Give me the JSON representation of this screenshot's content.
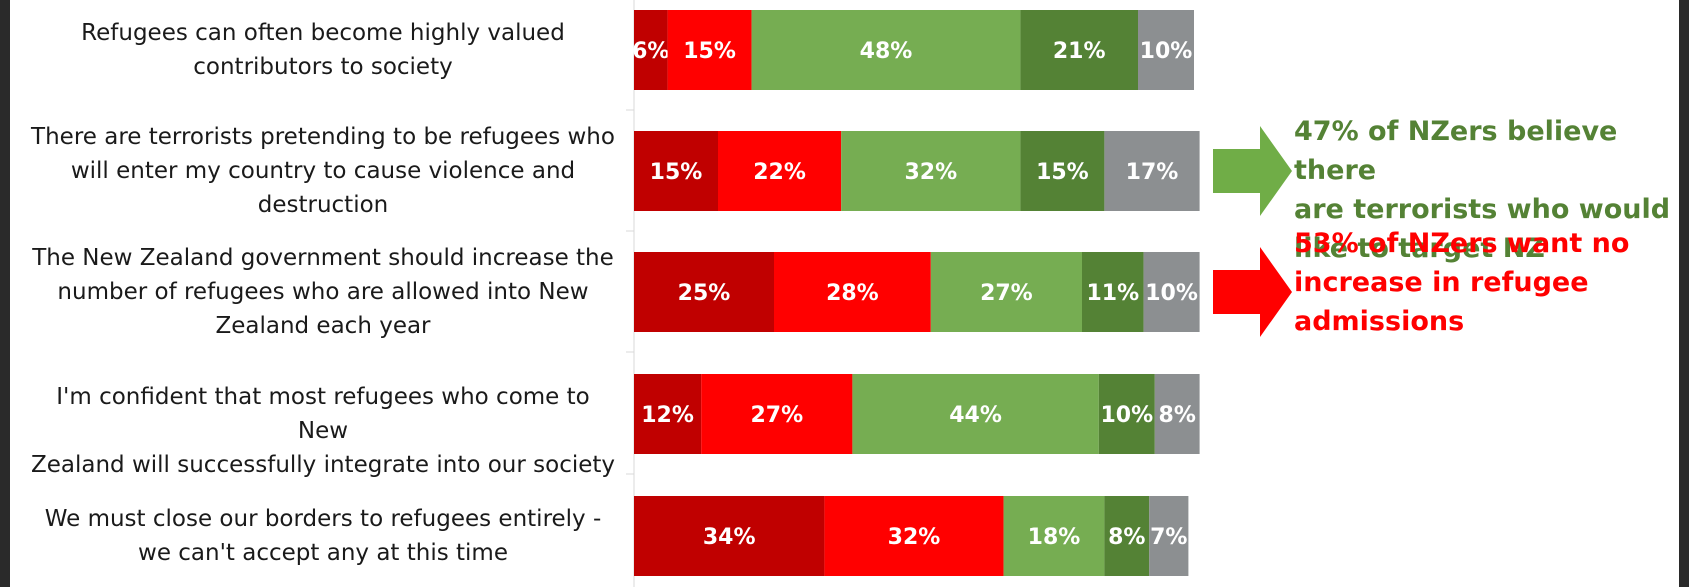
{
  "chart_data": {
    "type": "bar",
    "orientation": "horizontal",
    "stacked": true,
    "categories": [
      "Refugees can often become highly valued contributors to society",
      "There are terrorists pretending to be refugees who will enter my country to cause violence and destruction",
      "The New Zealand government should increase the number of refugees who are allowed into New Zealand each year",
      "I'm confident that most refugees who come to New Zealand will successfully integrate into our society",
      "We must close our borders to refugees entirely - we can't accept any at this time"
    ],
    "series": [
      {
        "color": "#c00000",
        "values": [
          6,
          15,
          25,
          12,
          34
        ]
      },
      {
        "color": "#ff0000",
        "values": [
          15,
          22,
          28,
          27,
          32
        ]
      },
      {
        "color": "#76ad52",
        "values": [
          48,
          32,
          27,
          44,
          18
        ]
      },
      {
        "color": "#548235",
        "values": [
          21,
          15,
          11,
          10,
          8
        ]
      },
      {
        "color": "#8c8f91",
        "values": [
          10,
          17,
          10,
          8,
          7
        ]
      }
    ],
    "value_suffix": "%",
    "legend": "none"
  },
  "row_labels": [
    {
      "lines": [
        "Refugees can often become highly valued",
        "contributors to society"
      ]
    },
    {
      "lines": [
        "There are terrorists pretending to be refugees who",
        "will enter my country to cause violence and",
        "destruction"
      ]
    },
    {
      "lines": [
        "The New Zealand government should increase the",
        "number of refugees who are allowed into New",
        "Zealand each year"
      ]
    },
    {
      "lines": [
        "I'm confident that most refugees who come to New",
        "Zealand will successfully integrate into our society"
      ]
    },
    {
      "lines": [
        "We must close our borders to refugees entirely -",
        "we can't accept any at this time"
      ]
    }
  ],
  "callouts": [
    {
      "color": "#548235",
      "arrow_color": "#70ad47",
      "lines": [
        "47% of NZers believe there",
        "are terrorists who would",
        "like to target NZ"
      ]
    },
    {
      "color": "#ff0000",
      "arrow_color": "#ff0000",
      "lines": [
        "53% of NZers want no",
        "increase in refugee",
        "admissions"
      ]
    }
  ]
}
